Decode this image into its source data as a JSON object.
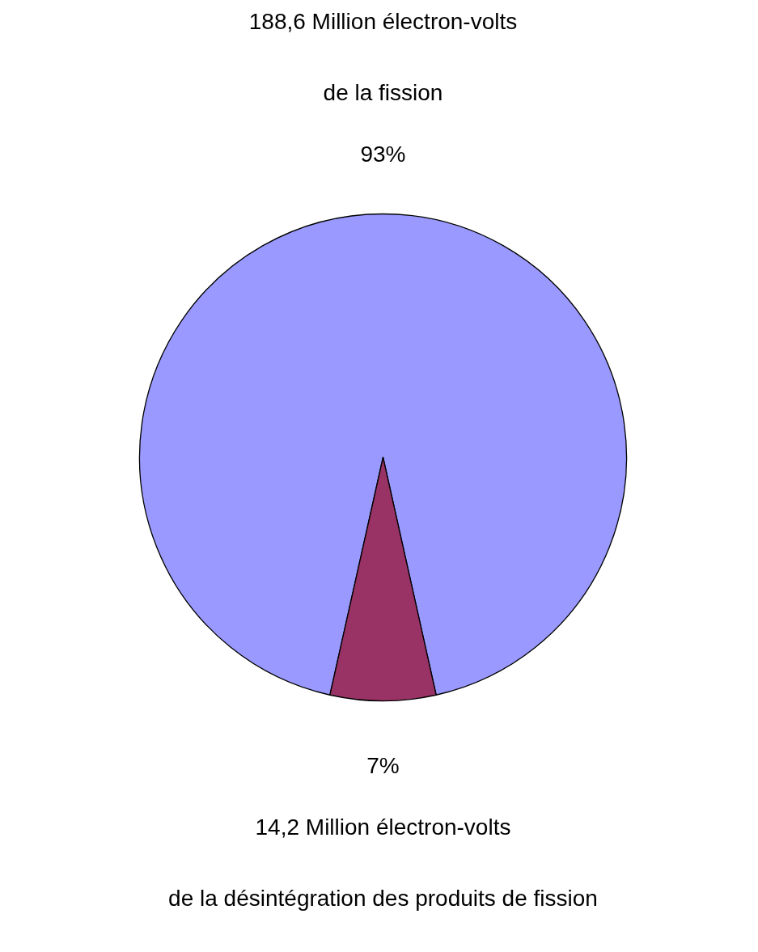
{
  "chart_data": {
    "type": "pie",
    "categories": [
      "188,6 Million électron-volts\nde la fission",
      "14,2 Million électron-volts\nde la désintégration des produits de fission"
    ],
    "values": [
      93,
      7
    ],
    "colors": [
      "#9999ff",
      "#993366"
    ],
    "value_labels": [
      "93%",
      "7%"
    ]
  }
}
